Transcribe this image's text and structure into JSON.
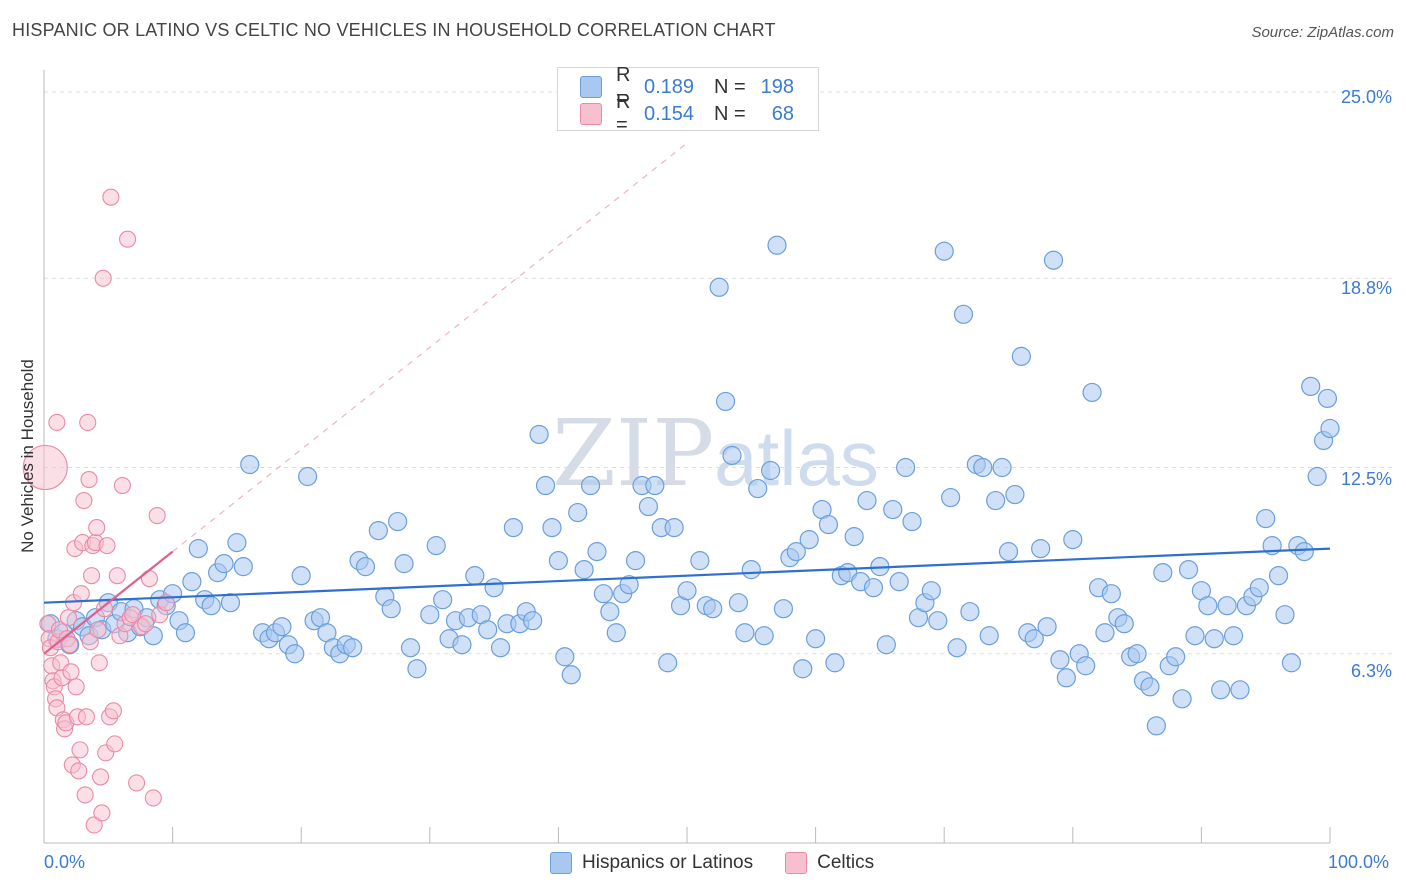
{
  "title": "HISPANIC OR LATINO VS CELTIC NO VEHICLES IN HOUSEHOLD CORRELATION CHART",
  "source": "Source: ZipAtlas.com",
  "watermark": {
    "zip": "ZIP",
    "atlas": "atlas"
  },
  "legend_top": {
    "rows": [
      {
        "r_label": "R =",
        "r_value": "0.189",
        "n_label": "N =",
        "n_value": "198"
      },
      {
        "r_label": "R =",
        "r_value": "0.154",
        "n_label": "N =",
        "n_value": "68"
      }
    ]
  },
  "legend_bottom": {
    "items": [
      "Hispanics or Latinos",
      "Celtics"
    ]
  },
  "colors": {
    "blue_fill": "#a9c8f0",
    "blue_stroke": "#6b9fdc",
    "blue_line": "#2f6fd0",
    "pink_fill": "#f7c0cf",
    "pink_stroke": "#e98aa6",
    "pink_line": "#e0608a",
    "tick_text": "#3a7bd5",
    "grid": "#dddddd"
  },
  "chart_data": {
    "type": "scatter",
    "title": "HISPANIC OR LATINO VS CELTIC NO VEHICLES IN HOUSEHOLD CORRELATION CHART",
    "xlabel": "",
    "ylabel": "No Vehicles in Household",
    "x_ticks": [
      "0.0%",
      "100.0%"
    ],
    "y_ticks": [
      "6.3%",
      "12.5%",
      "18.8%",
      "25.0%"
    ],
    "xlim": [
      0,
      100
    ],
    "ylim": [
      0,
      25.6
    ],
    "grid": true,
    "legend_position": "top-center",
    "series": [
      {
        "name": "Hispanics or Latinos",
        "r": 0.189,
        "n": 198,
        "trend": {
          "x": [
            0,
            100
          ],
          "y": [
            8.0,
            9.8
          ]
        },
        "points": [
          [
            0.5,
            7.3
          ],
          [
            1,
            6.8
          ],
          [
            1.5,
            7.0
          ],
          [
            2,
            6.6
          ],
          [
            2.5,
            7.4
          ],
          [
            3,
            7.2
          ],
          [
            3.5,
            6.9
          ],
          [
            4,
            7.5
          ],
          [
            4.5,
            7.1
          ],
          [
            5,
            8.0
          ],
          [
            5.5,
            7.3
          ],
          [
            6,
            7.7
          ],
          [
            6.5,
            7.0
          ],
          [
            7,
            7.8
          ],
          [
            7.5,
            7.2
          ],
          [
            8,
            7.5
          ],
          [
            8.5,
            6.9
          ],
          [
            9,
            8.1
          ],
          [
            9.5,
            7.9
          ],
          [
            10,
            8.3
          ],
          [
            10.5,
            7.4
          ],
          [
            11,
            7.0
          ],
          [
            11.5,
            8.7
          ],
          [
            12,
            9.8
          ],
          [
            12.5,
            8.1
          ],
          [
            13,
            7.9
          ],
          [
            13.5,
            9.0
          ],
          [
            14,
            9.3
          ],
          [
            14.5,
            8.0
          ],
          [
            15,
            10.0
          ],
          [
            15.5,
            9.2
          ],
          [
            16,
            12.6
          ],
          [
            17,
            7.0
          ],
          [
            17.5,
            6.8
          ],
          [
            18,
            7.0
          ],
          [
            18.5,
            7.2
          ],
          [
            19,
            6.6
          ],
          [
            19.5,
            6.3
          ],
          [
            20,
            8.9
          ],
          [
            20.5,
            12.2
          ],
          [
            21,
            7.4
          ],
          [
            21.5,
            7.5
          ],
          [
            22,
            7.0
          ],
          [
            22.5,
            6.5
          ],
          [
            23,
            6.3
          ],
          [
            23.5,
            6.6
          ],
          [
            24,
            6.5
          ],
          [
            24.5,
            9.4
          ],
          [
            25,
            9.2
          ],
          [
            26,
            10.4
          ],
          [
            26.5,
            8.2
          ],
          [
            27,
            7.8
          ],
          [
            27.5,
            10.7
          ],
          [
            28,
            9.3
          ],
          [
            28.5,
            6.5
          ],
          [
            29,
            5.8
          ],
          [
            30,
            7.6
          ],
          [
            30.5,
            9.9
          ],
          [
            31,
            8.1
          ],
          [
            31.5,
            6.8
          ],
          [
            32,
            7.4
          ],
          [
            32.5,
            6.6
          ],
          [
            33,
            7.5
          ],
          [
            33.5,
            8.9
          ],
          [
            34,
            7.6
          ],
          [
            34.5,
            7.1
          ],
          [
            35,
            8.5
          ],
          [
            35.5,
            6.5
          ],
          [
            36,
            7.3
          ],
          [
            36.5,
            10.5
          ],
          [
            37,
            7.3
          ],
          [
            37.5,
            7.7
          ],
          [
            38,
            7.4
          ],
          [
            38.5,
            13.6
          ],
          [
            39,
            11.9
          ],
          [
            39.5,
            10.5
          ],
          [
            40,
            9.4
          ],
          [
            40.5,
            6.2
          ],
          [
            41,
            5.6
          ],
          [
            41.5,
            11.0
          ],
          [
            42,
            9.1
          ],
          [
            42.5,
            11.9
          ],
          [
            43,
            9.7
          ],
          [
            43.5,
            8.3
          ],
          [
            44,
            7.7
          ],
          [
            44.5,
            7.0
          ],
          [
            45,
            8.3
          ],
          [
            45.5,
            8.6
          ],
          [
            46,
            9.4
          ],
          [
            46.5,
            11.9
          ],
          [
            47,
            11.2
          ],
          [
            47.5,
            11.9
          ],
          [
            48,
            10.5
          ],
          [
            48.5,
            6.0
          ],
          [
            49,
            10.5
          ],
          [
            49.5,
            7.9
          ],
          [
            50,
            8.4
          ],
          [
            51,
            9.4
          ],
          [
            51.5,
            7.9
          ],
          [
            52,
            7.8
          ],
          [
            52.5,
            18.5
          ],
          [
            53,
            14.7
          ],
          [
            53.5,
            12.9
          ],
          [
            54,
            8.0
          ],
          [
            54.5,
            7.0
          ],
          [
            55,
            9.1
          ],
          [
            55.5,
            11.8
          ],
          [
            56,
            6.9
          ],
          [
            56.5,
            12.4
          ],
          [
            57,
            19.9
          ],
          [
            57.5,
            7.8
          ],
          [
            58,
            9.5
          ],
          [
            58.5,
            9.7
          ],
          [
            59,
            5.8
          ],
          [
            59.5,
            10.1
          ],
          [
            60,
            6.8
          ],
          [
            60.5,
            11.1
          ],
          [
            61,
            10.6
          ],
          [
            61.5,
            6.0
          ],
          [
            62,
            8.9
          ],
          [
            62.5,
            9.0
          ],
          [
            63,
            10.2
          ],
          [
            63.5,
            8.7
          ],
          [
            64,
            11.4
          ],
          [
            64.5,
            8.5
          ],
          [
            65,
            9.2
          ],
          [
            65.5,
            6.6
          ],
          [
            66,
            11.1
          ],
          [
            66.5,
            8.7
          ],
          [
            67,
            12.5
          ],
          [
            67.5,
            10.7
          ],
          [
            68,
            7.5
          ],
          [
            68.5,
            8.0
          ],
          [
            69,
            8.4
          ],
          [
            69.5,
            7.4
          ],
          [
            70,
            19.7
          ],
          [
            70.5,
            11.5
          ],
          [
            71,
            6.5
          ],
          [
            71.5,
            17.6
          ],
          [
            72,
            7.7
          ],
          [
            72.5,
            12.6
          ],
          [
            73,
            12.5
          ],
          [
            73.5,
            6.9
          ],
          [
            74,
            11.4
          ],
          [
            74.5,
            12.5
          ],
          [
            75,
            9.7
          ],
          [
            75.5,
            11.6
          ],
          [
            76,
            16.2
          ],
          [
            76.5,
            7.0
          ],
          [
            77,
            6.8
          ],
          [
            77.5,
            9.8
          ],
          [
            78,
            7.2
          ],
          [
            78.5,
            19.4
          ],
          [
            79,
            6.1
          ],
          [
            79.5,
            5.5
          ],
          [
            80,
            10.1
          ],
          [
            80.5,
            6.3
          ],
          [
            81,
            5.9
          ],
          [
            81.5,
            15.0
          ],
          [
            82,
            8.5
          ],
          [
            82.5,
            7.0
          ],
          [
            83,
            8.3
          ],
          [
            83.5,
            7.5
          ],
          [
            84,
            7.3
          ],
          [
            84.5,
            6.2
          ],
          [
            85,
            6.3
          ],
          [
            85.5,
            5.4
          ],
          [
            86,
            5.2
          ],
          [
            86.5,
            3.9
          ],
          [
            87,
            9.0
          ],
          [
            87.5,
            5.9
          ],
          [
            88,
            6.2
          ],
          [
            88.5,
            4.8
          ],
          [
            89,
            9.1
          ],
          [
            89.5,
            6.9
          ],
          [
            90,
            8.4
          ],
          [
            90.5,
            7.9
          ],
          [
            91,
            6.8
          ],
          [
            91.5,
            5.1
          ],
          [
            92,
            7.9
          ],
          [
            92.5,
            6.9
          ],
          [
            93,
            5.1
          ],
          [
            93.5,
            7.9
          ],
          [
            94,
            8.2
          ],
          [
            94.5,
            8.5
          ],
          [
            95,
            10.8
          ],
          [
            95.5,
            9.9
          ],
          [
            96,
            8.9
          ],
          [
            96.5,
            7.6
          ],
          [
            97,
            6.0
          ],
          [
            97.5,
            9.9
          ],
          [
            98,
            9.7
          ],
          [
            98.5,
            15.2
          ],
          [
            99,
            12.2
          ],
          [
            99.5,
            13.4
          ],
          [
            99.8,
            14.8
          ],
          [
            100,
            13.8
          ]
        ]
      },
      {
        "name": "Celtics",
        "r": 0.154,
        "n": 68,
        "trend": {
          "x": [
            0,
            10
          ],
          "y": [
            6.3,
            9.7
          ]
        },
        "trend_extended": {
          "x": [
            10,
            50
          ],
          "y": [
            9.7,
            23.3
          ]
        },
        "points": [
          [
            0.1,
            12.5
          ],
          [
            0.3,
            7.3
          ],
          [
            0.4,
            6.8
          ],
          [
            0.5,
            6.5
          ],
          [
            0.6,
            5.9
          ],
          [
            0.7,
            5.4
          ],
          [
            0.8,
            5.2
          ],
          [
            0.9,
            4.8
          ],
          [
            1,
            4.5
          ],
          [
            1.1,
            6.7
          ],
          [
            1.2,
            7.1
          ],
          [
            1.3,
            6.0
          ],
          [
            1.4,
            5.5
          ],
          [
            1.5,
            4.1
          ],
          [
            1.6,
            3.8
          ],
          [
            1.7,
            4.0
          ],
          [
            1.8,
            6.8
          ],
          [
            1.9,
            7.5
          ],
          [
            2,
            6.6
          ],
          [
            2.1,
            5.7
          ],
          [
            2.2,
            2.6
          ],
          [
            2.3,
            8.0
          ],
          [
            2.4,
            9.8
          ],
          [
            2.5,
            5.2
          ],
          [
            2.6,
            4.2
          ],
          [
            2.7,
            2.4
          ],
          [
            2.8,
            3.1
          ],
          [
            2.9,
            8.3
          ],
          [
            3,
            10.0
          ],
          [
            3.1,
            11.4
          ],
          [
            3.2,
            1.6
          ],
          [
            3.3,
            4.2
          ],
          [
            3.4,
            14.0
          ],
          [
            3.5,
            12.1
          ],
          [
            3.6,
            6.7
          ],
          [
            3.7,
            8.9
          ],
          [
            3.8,
            9.9
          ],
          [
            3.9,
            0.6
          ],
          [
            4,
            10.0
          ],
          [
            4.1,
            10.5
          ],
          [
            4.2,
            7.1
          ],
          [
            4.3,
            6.0
          ],
          [
            4.4,
            2.2
          ],
          [
            4.5,
            1.0
          ],
          [
            4.6,
            18.8
          ],
          [
            4.7,
            7.8
          ],
          [
            4.8,
            3.0
          ],
          [
            4.9,
            9.9
          ],
          [
            5.1,
            4.2
          ],
          [
            5.2,
            21.5
          ],
          [
            5.4,
            4.4
          ],
          [
            5.5,
            3.3
          ],
          [
            5.7,
            8.9
          ],
          [
            5.9,
            6.9
          ],
          [
            6.1,
            11.9
          ],
          [
            6.3,
            7.3
          ],
          [
            6.5,
            20.1
          ],
          [
            6.7,
            7.5
          ],
          [
            6.9,
            7.6
          ],
          [
            7.2,
            2.0
          ],
          [
            7.6,
            7.2
          ],
          [
            7.9,
            7.3
          ],
          [
            8.2,
            8.8
          ],
          [
            8.5,
            1.5
          ],
          [
            8.8,
            10.9
          ],
          [
            9.0,
            7.6
          ],
          [
            9.5,
            8.0
          ],
          [
            1.0,
            14.0
          ]
        ]
      }
    ]
  }
}
